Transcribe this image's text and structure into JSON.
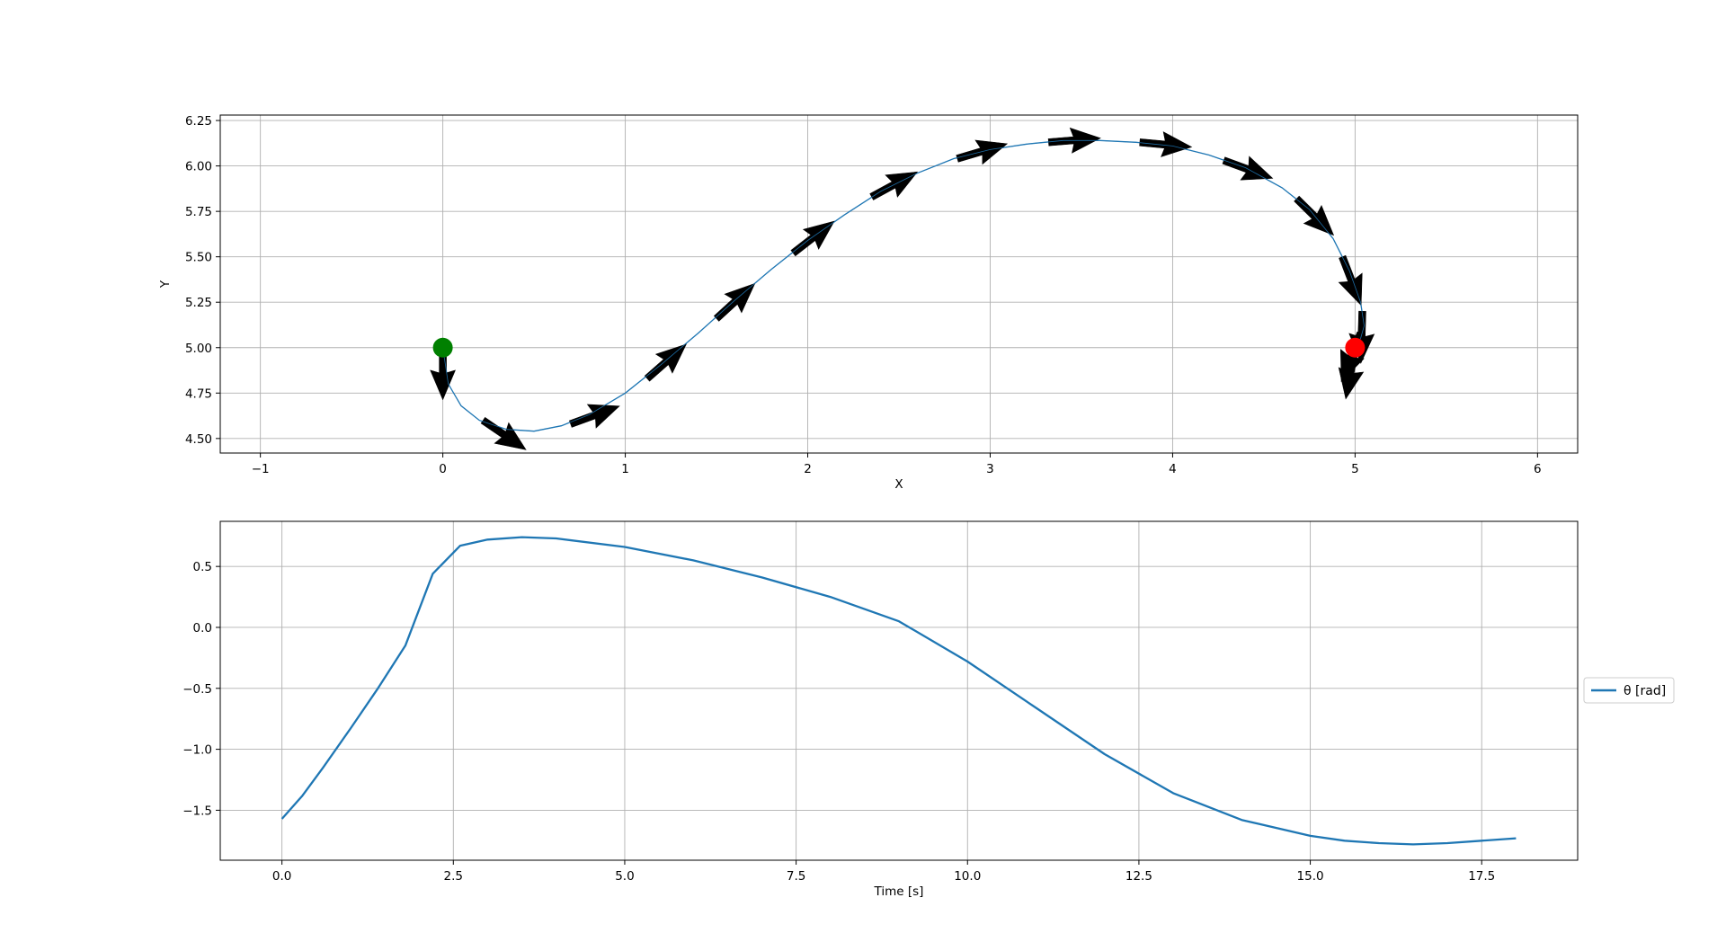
{
  "figure": {
    "colors": {
      "line": "#1f77b4",
      "grid": "#b0b0b0",
      "arrow": "#000000",
      "start": "#008000",
      "end": "#ff0000",
      "frame": "#000000"
    }
  },
  "chart_data": [
    {
      "type": "line",
      "title": "",
      "xlabel": "X",
      "ylabel": "Y",
      "xlim": [
        -1.22,
        6.22
      ],
      "ylim": [
        4.42,
        6.28
      ],
      "xticks": [
        -1,
        0,
        1,
        2,
        3,
        4,
        5,
        6
      ],
      "xtick_labels": [
        "−1",
        "0",
        "1",
        "2",
        "3",
        "4",
        "5",
        "6"
      ],
      "yticks": [
        4.5,
        4.75,
        5.0,
        5.25,
        5.5,
        5.75,
        6.0,
        6.25
      ],
      "ytick_labels": [
        "4.50",
        "4.75",
        "5.00",
        "5.25",
        "5.50",
        "5.75",
        "6.00",
        "6.25"
      ],
      "grid": true,
      "series": [
        {
          "x": [
            0.0,
            0.03,
            0.1,
            0.2,
            0.35,
            0.5,
            0.65,
            0.8,
            1.0,
            1.2,
            1.4,
            1.6,
            1.8,
            2.0,
            2.2,
            2.4,
            2.6,
            2.8,
            3.0,
            3.2,
            3.4,
            3.6,
            3.8,
            4.0,
            4.2,
            4.4,
            4.6,
            4.75,
            4.88,
            4.97,
            5.03,
            5.05,
            5.03,
            5.0
          ],
          "y": [
            5.0,
            4.8,
            4.68,
            4.6,
            4.55,
            4.54,
            4.57,
            4.63,
            4.75,
            4.91,
            5.08,
            5.26,
            5.43,
            5.59,
            5.73,
            5.86,
            5.96,
            6.04,
            6.09,
            6.12,
            6.14,
            6.14,
            6.13,
            6.11,
            6.06,
            5.99,
            5.88,
            5.76,
            5.6,
            5.42,
            5.25,
            5.12,
            5.05,
            5.0
          ]
        }
      ],
      "arrows": [
        {
          "x": 0.0,
          "y": 5.0,
          "angle": -1.571
        },
        {
          "x": 0.22,
          "y": 4.6,
          "angle": -0.6
        },
        {
          "x": 0.7,
          "y": 4.58,
          "angle": 0.35
        },
        {
          "x": 1.12,
          "y": 4.83,
          "angle": 0.72
        },
        {
          "x": 1.5,
          "y": 5.16,
          "angle": 0.74
        },
        {
          "x": 1.92,
          "y": 5.52,
          "angle": 0.66
        },
        {
          "x": 2.35,
          "y": 5.83,
          "angle": 0.5
        },
        {
          "x": 2.82,
          "y": 6.04,
          "angle": 0.29
        },
        {
          "x": 3.32,
          "y": 6.13,
          "angle": 0.08
        },
        {
          "x": 3.82,
          "y": 6.13,
          "angle": -0.09
        },
        {
          "x": 4.28,
          "y": 6.03,
          "angle": -0.35
        },
        {
          "x": 4.68,
          "y": 5.82,
          "angle": -0.78
        },
        {
          "x": 4.93,
          "y": 5.5,
          "angle": -1.2
        },
        {
          "x": 5.04,
          "y": 5.2,
          "angle": -1.6
        },
        {
          "x": 5.03,
          "y": 5.08,
          "angle": -1.95
        },
        {
          "x": 5.0,
          "y": 5.0,
          "angle": -1.75
        }
      ],
      "markers": [
        {
          "x": 0.0,
          "y": 5.0,
          "color": "#008000"
        },
        {
          "x": 5.0,
          "y": 5.0,
          "color": "#ff0000"
        }
      ]
    },
    {
      "type": "line",
      "title": "",
      "xlabel": "Time [s]",
      "ylabel": "",
      "xlim": [
        -0.9,
        18.9
      ],
      "ylim": [
        -1.91,
        0.87
      ],
      "xticks": [
        0,
        2.5,
        5,
        7.5,
        10,
        12.5,
        15,
        17.5
      ],
      "xtick_labels": [
        "0.0",
        "2.5",
        "5.0",
        "7.5",
        "10.0",
        "12.5",
        "15.0",
        "17.5"
      ],
      "yticks": [
        -1.5,
        -1.0,
        -0.5,
        0.0,
        0.5
      ],
      "ytick_labels": [
        "−1.5",
        "−1.0",
        "−0.5",
        "0.0",
        "0.5"
      ],
      "grid": true,
      "legend": "right",
      "series": [
        {
          "name": "θ [rad]",
          "x": [
            0.0,
            0.3,
            0.6,
            1.0,
            1.4,
            1.8,
            2.2,
            2.6,
            3.0,
            3.5,
            4.0,
            5.0,
            6.0,
            7.0,
            8.0,
            9.0,
            10.0,
            11.0,
            12.0,
            13.0,
            14.0,
            15.0,
            15.5,
            16.0,
            16.5,
            17.0,
            17.5,
            18.0
          ],
          "y": [
            -1.571,
            -1.38,
            -1.15,
            -0.83,
            -0.5,
            -0.15,
            0.44,
            0.67,
            0.72,
            0.74,
            0.73,
            0.66,
            0.55,
            0.41,
            0.25,
            0.05,
            -0.28,
            -0.66,
            -1.04,
            -1.36,
            -1.58,
            -1.71,
            -1.75,
            -1.77,
            -1.78,
            -1.77,
            -1.75,
            -1.73
          ]
        }
      ]
    }
  ]
}
